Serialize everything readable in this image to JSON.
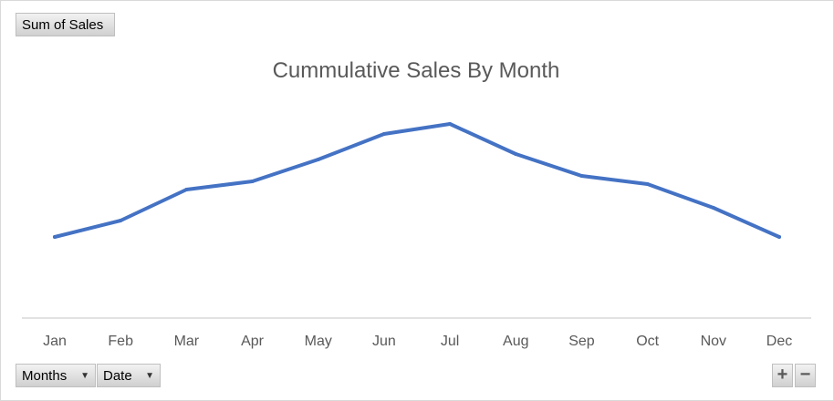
{
  "field_buttons": {
    "value_field": "Sum of Sales",
    "axis_fields": [
      "Months",
      "Date"
    ]
  },
  "zoom": {
    "expand": "+",
    "collapse": "−"
  },
  "chart_data": {
    "type": "line",
    "title": "Cummulative Sales By Month",
    "xlabel": "",
    "ylabel": "",
    "categories": [
      "Jan",
      "Feb",
      "Mar",
      "Apr",
      "May",
      "Jun",
      "Jul",
      "Aug",
      "Sep",
      "Oct",
      "Nov",
      "Dec"
    ],
    "series": [
      {
        "name": "Sum of Sales",
        "color": "#4472c4",
        "values": [
          89,
          107,
          141,
          150,
          174,
          202,
          213,
          180,
          156,
          147,
          121,
          89
        ]
      }
    ],
    "ylim": [
      0,
      300
    ],
    "grid": false,
    "legend": "none",
    "y_axis_visible": false
  }
}
